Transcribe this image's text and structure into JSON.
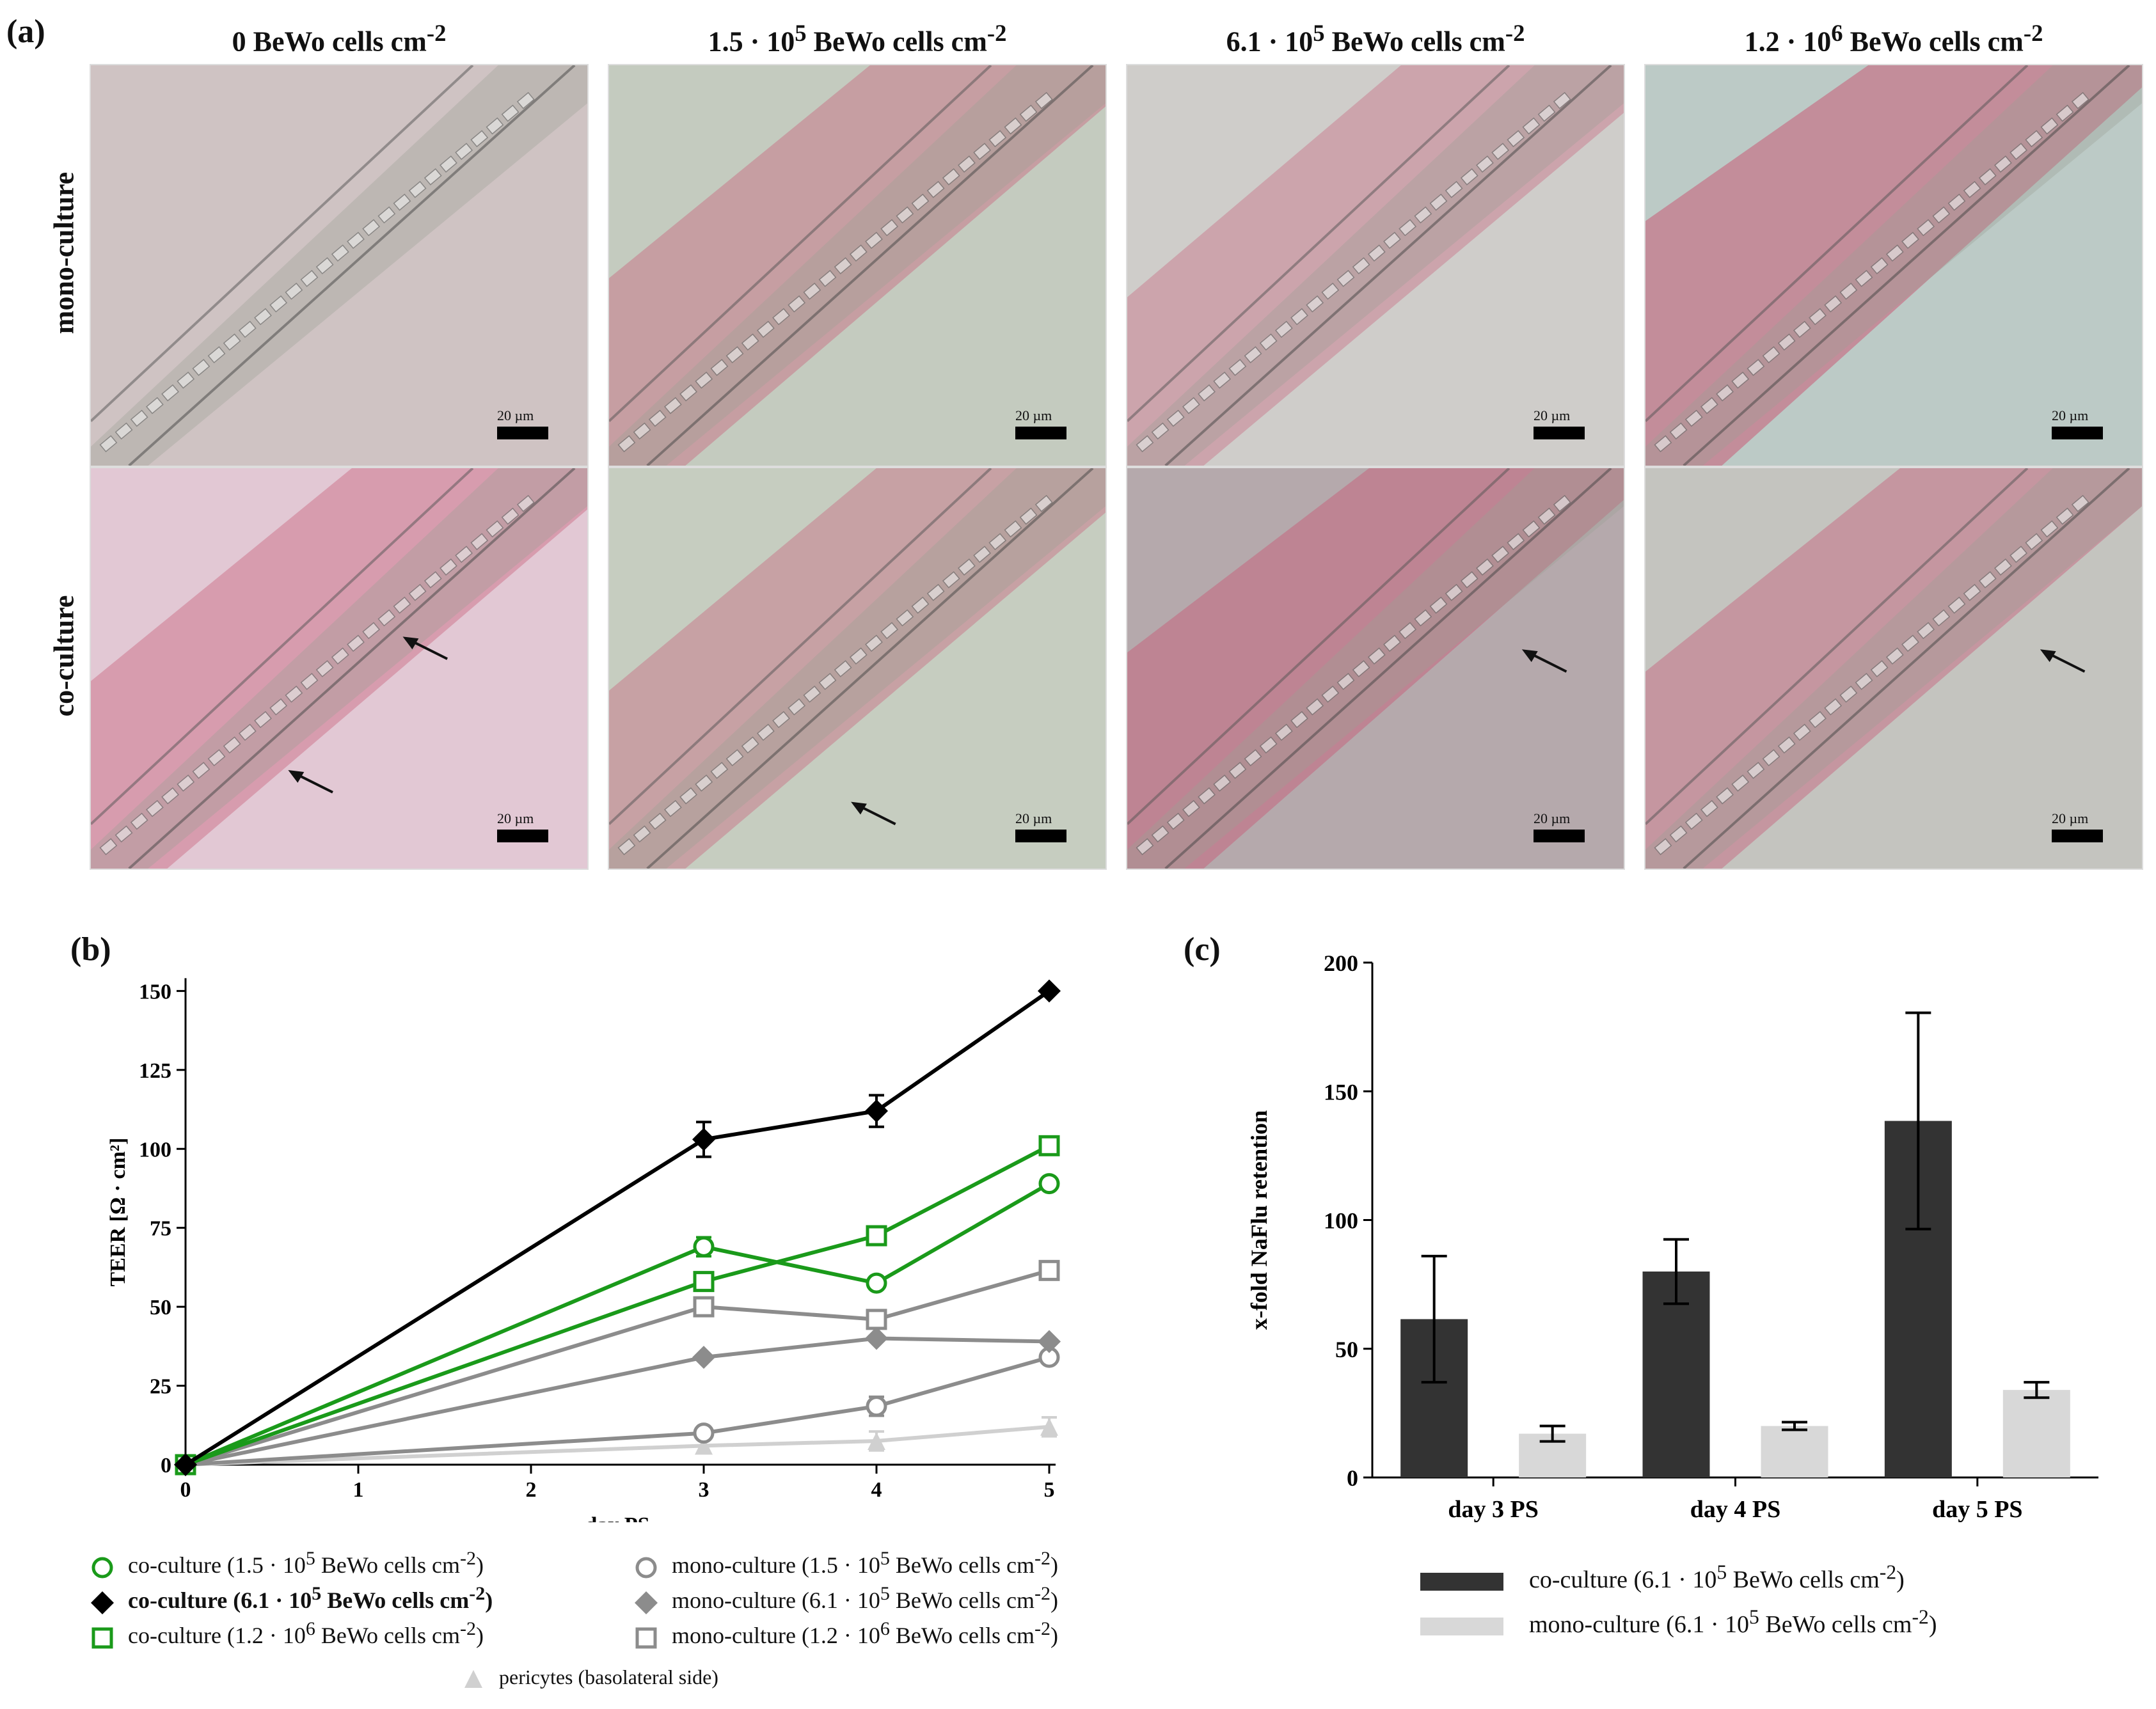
{
  "panel_a": {
    "label": "(a)",
    "column_titles": [
      {
        "main": "0 BeWo cells cm",
        "sup": "-2"
      },
      {
        "pre": "1.5 · 10",
        "exp": "5",
        "main": " BeWo cells cm",
        "sup": "-2"
      },
      {
        "pre": "6.1 · 10",
        "exp": "5",
        "main": " BeWo cells cm",
        "sup": "-2"
      },
      {
        "pre": "1.2 · 10",
        "exp": "6",
        "main": " BeWo cells cm",
        "sup": "-2"
      }
    ],
    "row_labels": [
      "mono-culture",
      "co-culture"
    ],
    "scale_bar_label": "20 µm"
  },
  "panel_b": {
    "label": "(b)",
    "chart_data": {
      "type": "line",
      "xlabel": "day PS",
      "ylabel": "TEER [Ω · cm²]",
      "x": [
        0,
        3,
        4,
        5
      ],
      "xticks": [
        0,
        1,
        2,
        3,
        4,
        5
      ],
      "yticks": [
        0,
        25,
        50,
        75,
        100,
        125,
        150
      ],
      "xlim": [
        0,
        5
      ],
      "ylim": [
        0,
        160
      ],
      "series": [
        {
          "name": "co-culture (1.5 · 10⁵ BeWo cells cm⁻²)",
          "color": "#1a9a1a",
          "marker": "circle-open",
          "values": [
            0,
            69,
            57.5,
            89
          ],
          "errors": [
            0,
            3,
            0,
            0
          ]
        },
        {
          "name": "co-culture (6.1 · 10⁵ BeWo cells cm⁻²)",
          "color": "#000000",
          "marker": "diamond-filled",
          "values": [
            0,
            103,
            112,
            150
          ],
          "errors": [
            0,
            5.5,
            5,
            0
          ]
        },
        {
          "name": "co-culture (1.2 · 10⁶ BeWo cells cm⁻²)",
          "color": "#1a9a1a",
          "marker": "square-open",
          "values": [
            0,
            58,
            72.5,
            101
          ],
          "errors": [
            0,
            0,
            0,
            0
          ]
        },
        {
          "name": "mono-culture (1.5 · 10⁵ BeWo cells cm⁻²)",
          "color": "#8c8c8c",
          "marker": "circle-open",
          "values": [
            0,
            10,
            18.5,
            34
          ],
          "errors": [
            0,
            0,
            3,
            0
          ]
        },
        {
          "name": "mono-culture (6.1 · 10⁵ BeWo cells cm⁻²)",
          "color": "#8c8c8c",
          "marker": "diamond-filled",
          "values": [
            0,
            34,
            40,
            39
          ],
          "errors": [
            0,
            0,
            0,
            0
          ]
        },
        {
          "name": "mono-culture (1.2 · 10⁶ BeWo cells cm⁻²)",
          "color": "#8c8c8c",
          "marker": "square-open",
          "values": [
            0,
            50,
            46,
            61.5
          ],
          "errors": [
            0,
            0,
            0,
            0
          ]
        },
        {
          "name": "pericytes (basolateral side)",
          "color": "#d0d0d0",
          "marker": "triangle-filled",
          "values": [
            0,
            6,
            7.5,
            12
          ],
          "errors": [
            0,
            0,
            3,
            3
          ]
        }
      ]
    },
    "legend": [
      {
        "pre": "co-culture (1.5 · 10",
        "exp": "5",
        "mid": " BeWo cells cm",
        "sup": "-2",
        "post": ")",
        "bold": false
      },
      {
        "pre": "co-culture (6.1 · 10",
        "exp": "5",
        "mid": " BeWo cells cm",
        "sup": "-2",
        "post": ")",
        "bold": true
      },
      {
        "pre": "co-culture (1.2 · 10",
        "exp": "6",
        "mid": " BeWo cells cm",
        "sup": "-2",
        "post": ")",
        "bold": false
      },
      {
        "pre": "mono-culture (1.5 · 10",
        "exp": "5",
        "mid": " BeWo cells cm",
        "sup": "-2",
        "post": ")",
        "bold": false
      },
      {
        "pre": "mono-culture (6.1 · 10",
        "exp": "5",
        "mid": " BeWo cells cm",
        "sup": "-2",
        "post": ")",
        "bold": false
      },
      {
        "pre": "mono-culture (1.2 · 10",
        "exp": "6",
        "mid": " BeWo cells cm",
        "sup": "-2",
        "post": ")",
        "bold": false
      },
      {
        "pre": "pericytes (basolateral side)",
        "exp": "",
        "mid": "",
        "sup": "",
        "post": "",
        "bold": false
      }
    ]
  },
  "panel_c": {
    "label": "(c)",
    "chart_data": {
      "type": "bar",
      "categories": [
        "day 3 PS",
        "day 4 PS",
        "day 5 PS"
      ],
      "ylabel": "x-fold NaFlu retention",
      "ylim": [
        0,
        200
      ],
      "yticks": [
        0,
        50,
        100,
        150,
        200
      ],
      "series": [
        {
          "name": "co-culture (6.1 · 10⁵ BeWo cells cm⁻²)",
          "color": "#333333",
          "values": [
            61.5,
            80,
            138.5
          ],
          "errors": [
            24.5,
            12.5,
            42
          ]
        },
        {
          "name": "mono-culture (6.1 · 10⁵ BeWo cells cm⁻²)",
          "color": "#d8d8d8",
          "values": [
            17,
            20,
            34
          ],
          "errors": [
            3,
            1.5,
            3
          ]
        }
      ]
    },
    "legend": [
      {
        "pre": "co-culture (6.1 · 10",
        "exp": "5",
        "mid": " BeWo cells cm",
        "sup": "-2",
        "post": ")"
      },
      {
        "pre": "mono-culture (6.1 · 10",
        "exp": "5",
        "mid": " BeWo cells cm",
        "sup": "-2",
        "post": ")"
      }
    ]
  }
}
